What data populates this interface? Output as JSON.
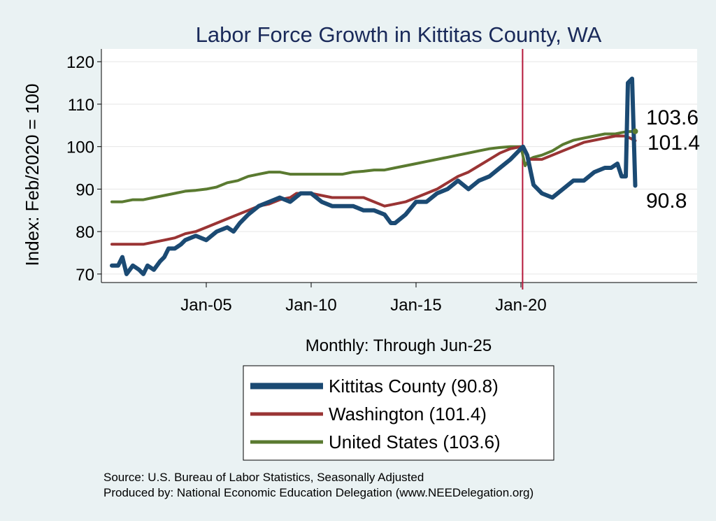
{
  "chart_data": {
    "type": "line",
    "title": "Labor Force Growth in Kittitas  County, WA",
    "ylabel": "Index: Feb/2020 = 100",
    "xlabel": "Monthly: Through Jun-25",
    "ylim": [
      68,
      123
    ],
    "xlim": [
      2000.0,
      2028.4
    ],
    "yticks": [
      70,
      80,
      90,
      100,
      110,
      120
    ],
    "xticks": [
      {
        "value": 2005.0,
        "label": "Jan-05"
      },
      {
        "value": 2010.0,
        "label": "Jan-10"
      },
      {
        "value": 2015.0,
        "label": "Jan-15"
      },
      {
        "value": 2020.0,
        "label": "Jan-20"
      }
    ],
    "reference_line": {
      "x": 2020.08,
      "color": "#b5173a"
    },
    "end_labels": [
      "103.6",
      "101.4",
      "90.8"
    ],
    "series": [
      {
        "name": "Kittitas  County",
        "legend": "Kittitas  County (90.8)",
        "color": "#1b4a73",
        "width": 6,
        "x": [
          2000.5,
          2000.8,
          2001.0,
          2001.2,
          2001.5,
          2001.8,
          2002.0,
          2002.2,
          2002.5,
          2002.8,
          2003.0,
          2003.2,
          2003.5,
          2003.8,
          2004.0,
          2004.5,
          2005.0,
          2005.5,
          2006.0,
          2006.3,
          2006.6,
          2007.0,
          2007.5,
          2008.0,
          2008.5,
          2009.0,
          2009.5,
          2010.0,
          2010.5,
          2011.0,
          2011.5,
          2012.0,
          2012.5,
          2013.0,
          2013.5,
          2013.8,
          2014.0,
          2014.5,
          2015.0,
          2015.5,
          2016.0,
          2016.5,
          2017.0,
          2017.5,
          2018.0,
          2018.5,
          2019.0,
          2019.5,
          2019.9,
          2020.1,
          2020.3,
          2020.6,
          2021.0,
          2021.5,
          2022.0,
          2022.5,
          2023.0,
          2023.5,
          2024.0,
          2024.3,
          2024.6,
          2024.8,
          2025.0,
          2025.1,
          2025.3,
          2025.45
        ],
        "y": [
          72,
          72,
          74,
          70,
          72,
          71,
          70,
          72,
          71,
          73,
          74,
          76,
          76,
          77,
          78,
          79,
          78,
          80,
          81,
          80,
          82,
          84,
          86,
          87,
          88,
          87,
          89,
          89,
          87,
          86,
          86,
          86,
          85,
          85,
          84,
          82,
          82,
          84,
          87,
          87,
          89,
          90,
          92,
          90,
          92,
          93,
          95,
          97,
          99,
          100,
          98,
          91,
          89,
          88,
          90,
          92,
          92,
          94,
          95,
          95,
          96,
          93,
          93,
          115,
          116,
          90.8
        ]
      },
      {
        "name": "Washington",
        "legend": "Washington (101.4)",
        "color": "#9a3434",
        "width": 4,
        "x": [
          2000.5,
          2001.0,
          2001.5,
          2002.0,
          2002.5,
          2003.0,
          2003.5,
          2004.0,
          2004.5,
          2005.0,
          2005.5,
          2006.0,
          2006.5,
          2007.0,
          2007.5,
          2008.0,
          2008.5,
          2009.0,
          2009.3,
          2009.6,
          2010.0,
          2010.5,
          2011.0,
          2011.5,
          2012.0,
          2012.5,
          2013.0,
          2013.5,
          2014.0,
          2014.5,
          2015.0,
          2015.5,
          2016.0,
          2016.5,
          2017.0,
          2017.5,
          2018.0,
          2018.5,
          2019.0,
          2019.5,
          2020.0,
          2020.2,
          2020.4,
          2020.6,
          2021.0,
          2021.5,
          2022.0,
          2022.5,
          2023.0,
          2023.5,
          2024.0,
          2024.5,
          2025.0,
          2025.45
        ],
        "y": [
          77,
          77,
          77,
          77,
          77.5,
          78,
          78.5,
          79.5,
          80,
          81,
          82,
          83,
          84,
          85,
          86,
          86.5,
          87.5,
          88,
          89,
          89,
          89,
          88.5,
          88,
          88,
          88,
          88,
          87,
          86,
          86.5,
          87,
          88,
          89,
          90,
          91.5,
          93,
          94,
          95.5,
          97,
          98.5,
          99.5,
          100,
          99,
          97,
          97,
          97,
          98,
          99,
          100,
          101,
          101.5,
          102,
          102.5,
          102.5,
          101.4
        ]
      },
      {
        "name": "United States",
        "legend": "United States (103.6)",
        "color": "#5a7a30",
        "width": 4,
        "x": [
          2000.5,
          2001.0,
          2001.5,
          2002.0,
          2002.5,
          2003.0,
          2003.5,
          2004.0,
          2004.5,
          2005.0,
          2005.5,
          2006.0,
          2006.5,
          2007.0,
          2007.5,
          2008.0,
          2008.5,
          2009.0,
          2009.5,
          2010.0,
          2010.5,
          2011.0,
          2011.5,
          2012.0,
          2012.5,
          2013.0,
          2013.5,
          2014.0,
          2014.5,
          2015.0,
          2015.5,
          2016.0,
          2016.5,
          2017.0,
          2017.5,
          2018.0,
          2018.5,
          2019.0,
          2019.5,
          2020.0,
          2020.2,
          2020.4,
          2020.6,
          2021.0,
          2021.5,
          2022.0,
          2022.5,
          2023.0,
          2023.5,
          2024.0,
          2024.5,
          2025.0,
          2025.45
        ],
        "y": [
          87,
          87,
          87.5,
          87.5,
          88,
          88.5,
          89,
          89.5,
          89.7,
          90,
          90.5,
          91.5,
          92,
          93,
          93.5,
          94,
          94,
          93.5,
          93.5,
          93.5,
          93.5,
          93.5,
          93.5,
          94,
          94.2,
          94.5,
          94.5,
          95,
          95.5,
          96,
          96.5,
          97,
          97.5,
          98,
          98.5,
          99,
          99.5,
          99.8,
          100,
          100,
          95.5,
          97,
          97.5,
          98,
          99,
          100.5,
          101.5,
          102,
          102.5,
          103,
          103,
          103.5,
          103.6
        ]
      }
    ]
  },
  "source_text": "Source: U.S. Bureau of Labor Statistics, Seasonally Adjusted",
  "produced_text": "Produced by: National Economic Education Delegation (www.NEEDelegation.org)"
}
